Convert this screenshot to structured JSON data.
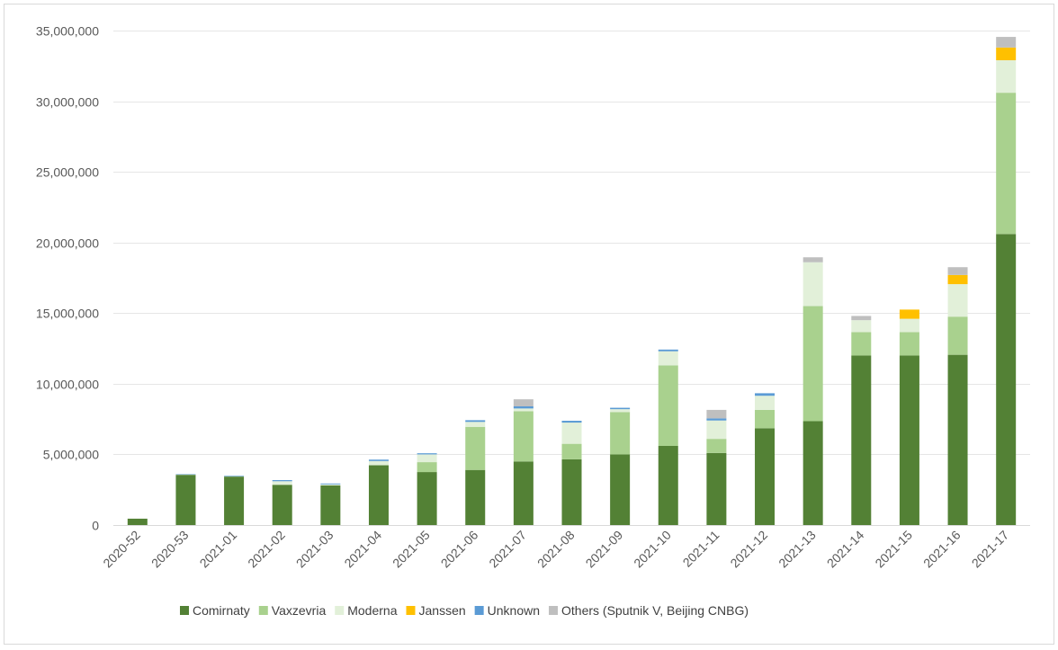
{
  "chart_data": {
    "type": "bar",
    "stacked": true,
    "title": "",
    "xlabel": "",
    "ylabel": "",
    "ylim": [
      0,
      35000000
    ],
    "yticks": [
      0,
      5000000,
      10000000,
      15000000,
      20000000,
      25000000,
      30000000,
      35000000
    ],
    "ytick_labels": [
      "0",
      "5,000,000",
      "10,000,000",
      "15,000,000",
      "20,000,000",
      "25,000,000",
      "30,000,000",
      "35,000,000"
    ],
    "grid": true,
    "legend_position": "bottom",
    "categories": [
      "2020-52",
      "2020-53",
      "2021-01",
      "2021-02",
      "2021-03",
      "2021-04",
      "2021-05",
      "2021-06",
      "2021-07",
      "2021-08",
      "2021-09",
      "2021-10",
      "2021-11",
      "2021-12",
      "2021-13",
      "2021-14",
      "2021-15",
      "2021-16",
      "2021-17"
    ],
    "series": [
      {
        "name": "Comirnaty",
        "color": "#538135",
        "values": [
          450000,
          3560000,
          3430000,
          2850000,
          2800000,
          4230000,
          3750000,
          3900000,
          4500000,
          4650000,
          5000000,
          5600000,
          5100000,
          6850000,
          7350000,
          12000000,
          12000000,
          12050000,
          20600000
        ]
      },
      {
        "name": "Vaxzevria",
        "color": "#a9d18e",
        "values": [
          0,
          0,
          0,
          0,
          0,
          0,
          700000,
          3050000,
          3550000,
          1100000,
          3000000,
          5700000,
          1000000,
          1300000,
          8150000,
          1650000,
          1650000,
          2700000,
          10000000
        ]
      },
      {
        "name": "Moderna",
        "color": "#e2f0d9",
        "values": [
          0,
          20000,
          30000,
          250000,
          80000,
          300000,
          550000,
          350000,
          200000,
          1500000,
          200000,
          1000000,
          1300000,
          1000000,
          3100000,
          850000,
          950000,
          2300000,
          2300000
        ]
      },
      {
        "name": "Janssen",
        "color": "#ffc000",
        "values": [
          0,
          0,
          0,
          0,
          0,
          0,
          0,
          0,
          0,
          0,
          0,
          0,
          0,
          0,
          0,
          0,
          650000,
          650000,
          900000
        ]
      },
      {
        "name": "Unknown",
        "color": "#5b9bd5",
        "values": [
          0,
          20000,
          40000,
          80000,
          60000,
          100000,
          80000,
          120000,
          150000,
          130000,
          100000,
          120000,
          150000,
          180000,
          0,
          0,
          0,
          0,
          0
        ]
      },
      {
        "name": "Others (Sputnik V, Beijing CNBG)",
        "color": "#bfbfbf",
        "values": [
          0,
          0,
          0,
          0,
          0,
          0,
          0,
          0,
          500000,
          0,
          0,
          0,
          600000,
          0,
          350000,
          300000,
          0,
          550000,
          750000
        ]
      }
    ]
  }
}
